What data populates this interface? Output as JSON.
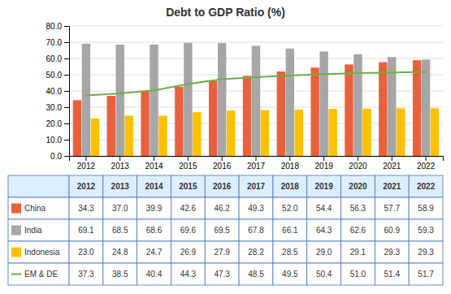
{
  "chart_data": {
    "type": "bar",
    "title": "Debt to GDP Ratio (%)",
    "categories": [
      "2012",
      "2013",
      "2014",
      "2015",
      "2016",
      "2017",
      "2018",
      "2019",
      "2020",
      "2021",
      "2022"
    ],
    "series": [
      {
        "name": "China",
        "type": "bar",
        "color": "#E8613C",
        "values": [
          34.3,
          37.0,
          39.9,
          42.6,
          46.2,
          49.3,
          52.0,
          54.4,
          56.3,
          57.7,
          58.9
        ],
        "value_labels": [
          "34.3",
          "37.0",
          "39.9",
          "42.6",
          "46.2",
          "49.3",
          "52.0",
          "54.4",
          "56.3",
          "57.7",
          "58.9"
        ]
      },
      {
        "name": "India",
        "type": "bar",
        "color": "#A6A6A6",
        "values": [
          69.1,
          68.5,
          68.6,
          69.6,
          69.5,
          67.8,
          66.1,
          64.3,
          62.6,
          60.9,
          59.3
        ],
        "value_labels": [
          "69.1",
          "68.5",
          "68.6",
          "69.6",
          "69.5",
          "67.8",
          "66.1",
          "64.3",
          "62.6",
          "60.9",
          "59.3"
        ]
      },
      {
        "name": "Indonesia",
        "type": "bar",
        "color": "#FFC000",
        "values": [
          23.0,
          24.8,
          24.7,
          26.9,
          27.9,
          28.2,
          28.5,
          29.0,
          29.1,
          29.3,
          29.3
        ],
        "value_labels": [
          "23.0",
          "24.8",
          "24.7",
          "26.9",
          "27.9",
          "28.2",
          "28.5",
          "29.0",
          "29.1",
          "29.3",
          "29.3"
        ]
      },
      {
        "name": "EM & DE",
        "type": "line",
        "color": "#70AD47",
        "values": [
          37.3,
          38.5,
          40.4,
          44.3,
          47.3,
          48.5,
          49.5,
          50.4,
          51.0,
          51.4,
          51.7
        ],
        "value_labels": [
          "37.3",
          "38.5",
          "40.4",
          "44.3",
          "47.3",
          "48.5",
          "49.5",
          "50.4",
          "51.0",
          "51.4",
          "51.7"
        ]
      }
    ],
    "ylim": [
      0,
      80
    ],
    "yticks": [
      {
        "value": 0.0,
        "label": "0.0"
      },
      {
        "value": 10.0,
        "label": "10.0"
      },
      {
        "value": 20.0,
        "label": "20.0"
      },
      {
        "value": 30.0,
        "label": "30.0"
      },
      {
        "value": 40.0,
        "label": "40.0"
      },
      {
        "value": 50.0,
        "label": "50.0"
      },
      {
        "value": 60.0,
        "label": "60.0"
      },
      {
        "value": 70.0,
        "label": "70.0"
      },
      {
        "value": 80.0,
        "label": "80.0"
      }
    ],
    "grid": true
  }
}
